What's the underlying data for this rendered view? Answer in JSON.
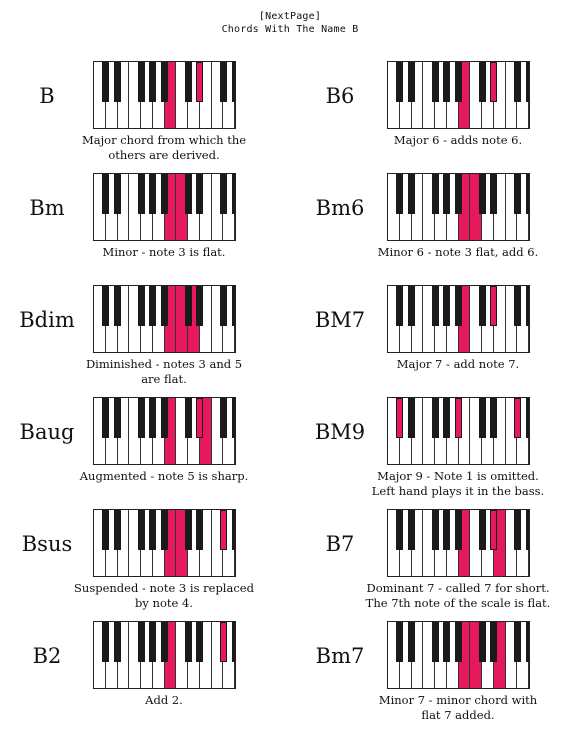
{
  "header": {
    "nav": "[NextPage]",
    "title": "Chords With The Name B"
  },
  "colors": {
    "highlight": "#e6195c",
    "black_key": "#1a1a1a",
    "white_key": "#ffffff"
  },
  "keyboard": {
    "white_keys": 12,
    "black_key_after_white": [
      0,
      1,
      3,
      4,
      5,
      7,
      8,
      10,
      11
    ]
  },
  "chords": [
    {
      "name": "B",
      "caption": [
        "Major chord from which the",
        "others are derived."
      ],
      "white_on": [
        6
      ],
      "black_on": [
        6,
        9
      ]
    },
    {
      "name": "B6",
      "caption": [
        "Major 6 - adds note 6."
      ],
      "white_on": [
        6
      ],
      "black_on": [
        6,
        9
      ]
    },
    {
      "name": "Bm",
      "caption": [
        "Minor - note 3 is flat."
      ],
      "white_on": [
        6,
        7
      ],
      "black_on": [
        9
      ]
    },
    {
      "name": "Bm6",
      "caption": [
        "Minor 6 - note 3 flat, add 6."
      ],
      "white_on": [
        6,
        7
      ],
      "black_on": [
        9,
        11
      ]
    },
    {
      "name": "Bdim",
      "caption": [
        "Diminished - notes 3 and 5",
        "are flat."
      ],
      "white_on": [
        6,
        7,
        8
      ],
      "black_on": []
    },
    {
      "name": "BM7",
      "caption": [
        "Major 7 - add note 7."
      ],
      "white_on": [
        6
      ],
      "black_on": [
        6,
        9,
        11
      ]
    },
    {
      "name": "Baug",
      "caption": [
        "Augmented - note 5 is sharp."
      ],
      "white_on": [
        6,
        9
      ],
      "black_on": [
        6
      ]
    },
    {
      "name": "BM9",
      "caption": [
        "Major 9 - Note 1 is omitted.",
        "Left hand plays it in the bass."
      ],
      "white_on": [],
      "black_on": [
        0,
        4,
        7,
        10
      ]
    },
    {
      "name": "Bsus",
      "caption": [
        "Suspended - note 3 is replaced",
        "by note 4."
      ],
      "white_on": [
        6,
        7
      ],
      "black_on": [
        7
      ]
    },
    {
      "name": "B7",
      "caption": [
        "Dominant 7 - called 7 for short.",
        "The 7th note of the scale is flat."
      ],
      "white_on": [
        6,
        9
      ],
      "black_on": [
        6,
        9
      ]
    },
    {
      "name": "B2",
      "caption": [
        "Add 2."
      ],
      "white_on": [
        6
      ],
      "black_on": [
        7,
        9
      ]
    },
    {
      "name": "Bm7",
      "caption": [
        "Minor 7 - minor chord with",
        "flat 7 added."
      ],
      "white_on": [
        6,
        7,
        9
      ],
      "black_on": [
        9
      ]
    }
  ]
}
